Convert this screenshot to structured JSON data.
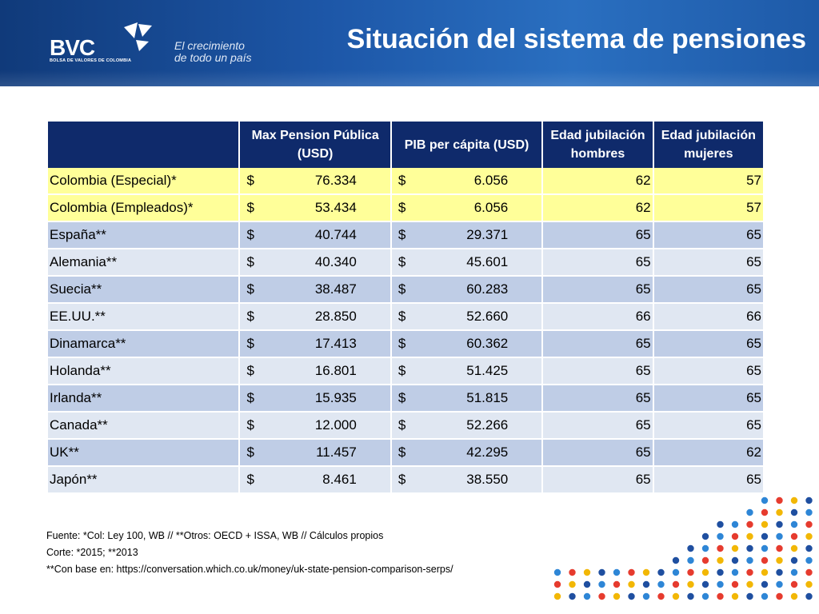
{
  "header": {
    "logo_text": "BVC",
    "logo_subtitle": "BOLSA DE VALORES DE COLOMBIA",
    "slogan_line1": "El crecimiento",
    "slogan_line2": "de todo un país",
    "title": "Situación del sistema de pensiones"
  },
  "table": {
    "headers": [
      "",
      "Max Pension Pública (USD)",
      "PIB per cápita (USD)",
      "Edad jubilación hombres",
      "Edad  jubilación mujeres"
    ],
    "currency_symbol": "$",
    "rows": [
      {
        "country": "Colombia (Especial)*",
        "pension": "76.334",
        "pib": "6.056",
        "men": "62",
        "women": "57"
      },
      {
        "country": "Colombia (Empleados)*",
        "pension": "53.434",
        "pib": "6.056",
        "men": "62",
        "women": "57"
      },
      {
        "country": "España**",
        "pension": "40.744",
        "pib": "29.371",
        "men": "65",
        "women": "65"
      },
      {
        "country": "Alemania**",
        "pension": "40.340",
        "pib": "45.601",
        "men": "65",
        "women": "65"
      },
      {
        "country": "Suecia**",
        "pension": "38.487",
        "pib": "60.283",
        "men": "65",
        "women": "65"
      },
      {
        "country": "EE.UU.**",
        "pension": "28.850",
        "pib": "52.660",
        "men": "66",
        "women": "66"
      },
      {
        "country": "Dinamarca**",
        "pension": "17.413",
        "pib": "60.362",
        "men": "65",
        "women": "65"
      },
      {
        "country": "Holanda**",
        "pension": "16.801",
        "pib": "51.425",
        "men": "65",
        "women": "65"
      },
      {
        "country": "Irlanda**",
        "pension": "15.935",
        "pib": "51.815",
        "men": "65",
        "women": "65"
      },
      {
        "country": "Canada**",
        "pension": "12.000",
        "pib": "52.266",
        "men": "65",
        "women": "65"
      },
      {
        "country": "UK**",
        "pension": "11.457",
        "pib": "42.295",
        "men": "65",
        "women": "62"
      },
      {
        "country": "Japón**",
        "pension": "8.461",
        "pib": "38.550",
        "men": "65",
        "women": "65"
      }
    ]
  },
  "notes": [
    "Fuente: *Col: Ley 100, WB // **Otros: OECD + ISSA, WB // Cálculos propios",
    "Corte: *2015; **2013",
    "**Con base en: https://conversation.which.co.uk/money/uk-state-pension-comparison-serps/"
  ],
  "colors": {
    "header_blue": "#1d57a8",
    "table_header": "#0f2a6b",
    "highlight_row": "#ffff99",
    "row_dark": "#bfcde6",
    "row_light": "#e0e7f2",
    "dot_palette": [
      "#f2b705",
      "#e63b2e",
      "#2e86d6",
      "#1f4fa0"
    ]
  }
}
